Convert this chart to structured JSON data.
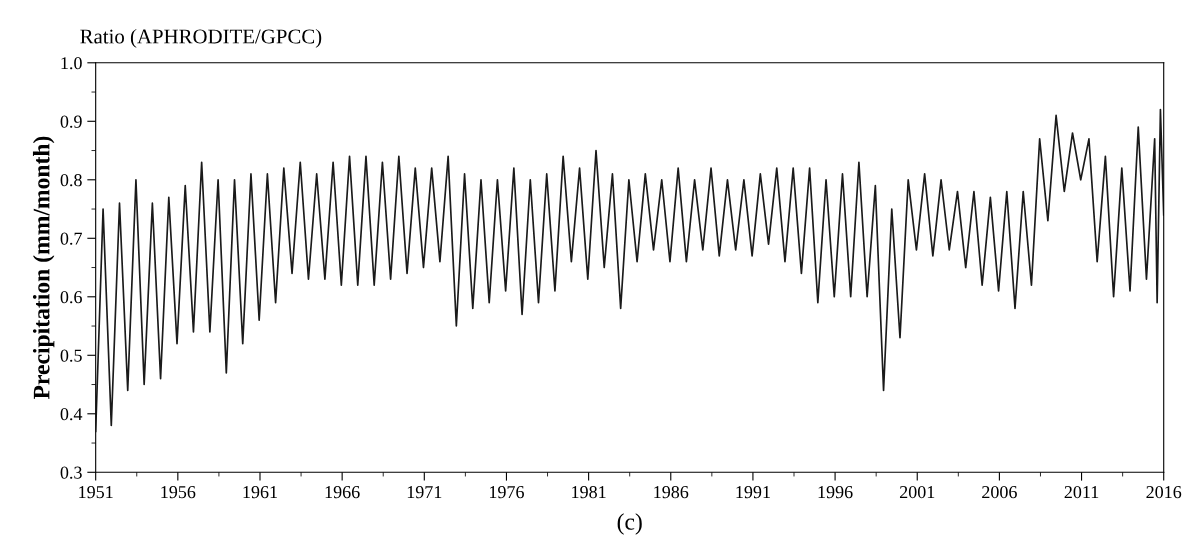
{
  "chart_data": {
    "type": "line",
    "title": "Ratio (APHRODITE/GPCC)",
    "ylabel": "Precipitation (mm/month)",
    "annotations": [
      "(c)"
    ],
    "x": [
      1951.0,
      1951.45,
      1951.95,
      1952.45,
      1952.95,
      1953.45,
      1953.95,
      1954.45,
      1954.95,
      1955.45,
      1955.95,
      1956.45,
      1956.95,
      1957.45,
      1957.95,
      1958.45,
      1958.95,
      1959.45,
      1959.95,
      1960.45,
      1960.95,
      1961.45,
      1961.95,
      1962.45,
      1962.95,
      1963.45,
      1963.95,
      1964.45,
      1964.95,
      1965.45,
      1965.95,
      1966.45,
      1966.95,
      1967.45,
      1967.95,
      1968.45,
      1968.95,
      1969.45,
      1969.95,
      1970.45,
      1970.95,
      1971.45,
      1971.95,
      1972.45,
      1972.95,
      1973.45,
      1973.95,
      1974.45,
      1974.95,
      1975.45,
      1975.95,
      1976.45,
      1976.95,
      1977.45,
      1977.95,
      1978.45,
      1978.95,
      1979.45,
      1979.95,
      1980.45,
      1980.95,
      1981.45,
      1981.95,
      1982.45,
      1982.95,
      1983.45,
      1983.95,
      1984.45,
      1984.95,
      1985.45,
      1985.95,
      1986.45,
      1986.95,
      1987.45,
      1987.95,
      1988.45,
      1988.95,
      1989.45,
      1989.95,
      1990.45,
      1990.95,
      1991.45,
      1991.95,
      1992.45,
      1992.95,
      1993.45,
      1993.95,
      1994.45,
      1994.95,
      1995.45,
      1995.95,
      1996.45,
      1996.95,
      1997.45,
      1997.95,
      1998.45,
      1998.95,
      1999.45,
      1999.95,
      2000.45,
      2000.95,
      2001.45,
      2001.95,
      2002.45,
      2002.95,
      2003.45,
      2003.95,
      2004.45,
      2004.95,
      2005.45,
      2005.95,
      2006.45,
      2006.95,
      2007.45,
      2007.95,
      2008.45,
      2008.95,
      2009.45,
      2009.95,
      2010.45,
      2010.95,
      2011.45,
      2011.95,
      2012.45,
      2012.95,
      2013.45,
      2013.95,
      2014.45,
      2014.95,
      2015.45,
      2015.6,
      2015.8,
      2016.0
    ],
    "series": [
      {
        "color": "#1a1a1a",
        "values": [
          0.37,
          0.75,
          0.38,
          0.76,
          0.44,
          0.8,
          0.45,
          0.76,
          0.46,
          0.77,
          0.52,
          0.79,
          0.54,
          0.83,
          0.54,
          0.8,
          0.47,
          0.8,
          0.52,
          0.81,
          0.56,
          0.81,
          0.59,
          0.82,
          0.64,
          0.83,
          0.63,
          0.81,
          0.63,
          0.83,
          0.62,
          0.84,
          0.62,
          0.84,
          0.62,
          0.83,
          0.63,
          0.84,
          0.64,
          0.82,
          0.65,
          0.82,
          0.66,
          0.84,
          0.55,
          0.81,
          0.58,
          0.8,
          0.59,
          0.8,
          0.61,
          0.82,
          0.57,
          0.8,
          0.59,
          0.81,
          0.61,
          0.84,
          0.66,
          0.82,
          0.63,
          0.85,
          0.65,
          0.81,
          0.58,
          0.8,
          0.66,
          0.81,
          0.68,
          0.8,
          0.66,
          0.82,
          0.66,
          0.8,
          0.68,
          0.82,
          0.67,
          0.8,
          0.68,
          0.8,
          0.67,
          0.81,
          0.69,
          0.82,
          0.66,
          0.82,
          0.64,
          0.82,
          0.59,
          0.8,
          0.6,
          0.81,
          0.6,
          0.83,
          0.6,
          0.79,
          0.44,
          0.75,
          0.53,
          0.8,
          0.68,
          0.81,
          0.67,
          0.8,
          0.68,
          0.78,
          0.65,
          0.78,
          0.62,
          0.77,
          0.61,
          0.78,
          0.58,
          0.78,
          0.62,
          0.87,
          0.73,
          0.91,
          0.78,
          0.88,
          0.8,
          0.87,
          0.66,
          0.84,
          0.6,
          0.82,
          0.61,
          0.89,
          0.63,
          0.87,
          0.59,
          0.92,
          0.74
        ]
      }
    ],
    "xlim": [
      1951,
      2016
    ],
    "xticks": [
      1951,
      1956,
      1961,
      1966,
      1971,
      1976,
      1981,
      1986,
      1991,
      1996,
      2001,
      2006,
      2011,
      2016
    ],
    "ylim": [
      0.3,
      1.0
    ],
    "yticks": [
      0.3,
      0.4,
      0.5,
      0.6,
      0.7,
      0.8,
      0.9,
      {
        "value": 1.0,
        "label": "1.0"
      }
    ],
    "grid": false,
    "marker": "none",
    "line_style": "solid"
  }
}
